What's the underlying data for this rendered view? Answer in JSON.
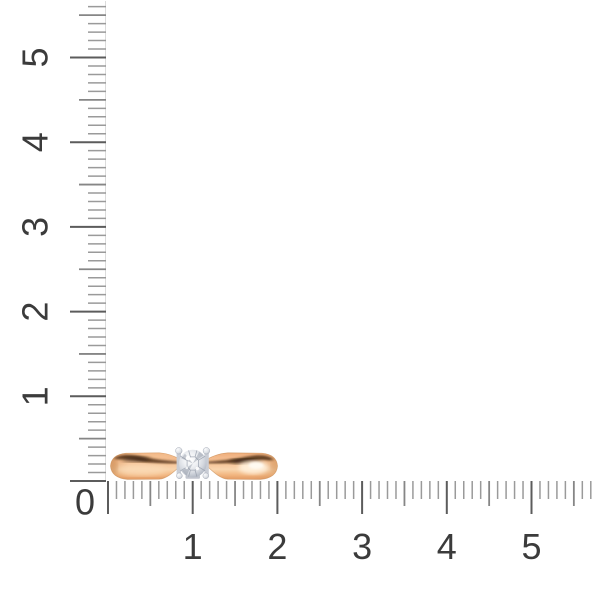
{
  "scene": {
    "background_color": "#ffffff"
  },
  "ruler": {
    "origin_label": "0",
    "vertical_numbers": [
      "1",
      "2",
      "3",
      "4",
      "5"
    ],
    "horizontal_numbers": [
      "1",
      "2",
      "3",
      "4",
      "5"
    ],
    "minor_tick_color": "#9a9a9a",
    "medium_tick_color": "#868686",
    "major_tick_color": "#5c5c5c",
    "axis_line_color": "#dcdcdc",
    "number_color": "#3b3b3b"
  },
  "product": {
    "name": "rose-gold-diamond-ring",
    "band_color_top": "#edab78",
    "band_color": "#f7c89d",
    "band_color_light": "#f9d6af",
    "band_color_bottom": "#df9660",
    "band_highlight_color": "#fff1dd",
    "band_shadow_color": "#452610",
    "diamond_color": "#d3d7de",
    "prong_color": "#c9cdd5"
  }
}
